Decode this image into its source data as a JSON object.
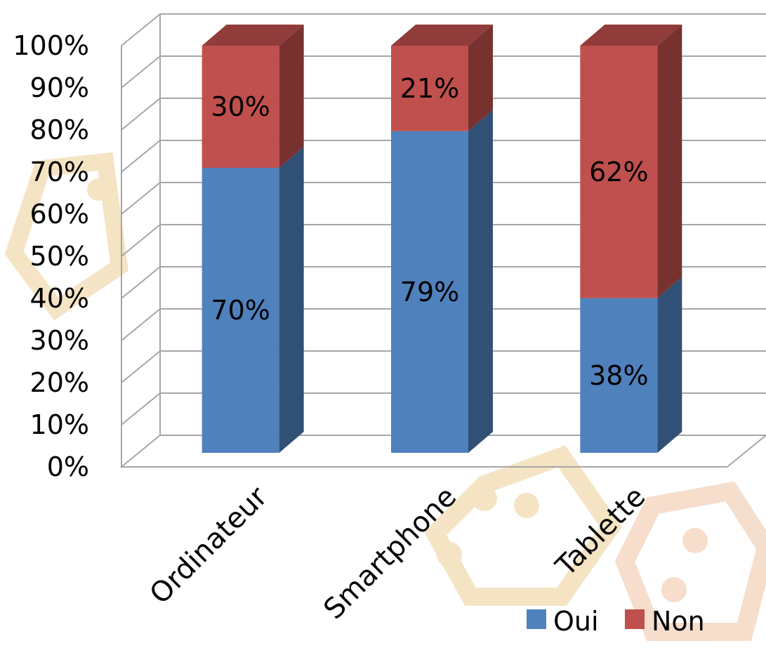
{
  "chart_data": {
    "type": "bar",
    "stacked": true,
    "three_d": true,
    "categories": [
      "Ordinateur",
      "Smartphone",
      "Tablette"
    ],
    "series": [
      {
        "name": "Oui",
        "values": [
          70,
          79,
          38
        ],
        "labels": [
          "70%",
          "79%",
          "38%"
        ],
        "color": "#4f81bd"
      },
      {
        "name": "Non",
        "values": [
          30,
          21,
          62
        ],
        "labels": [
          "30%",
          "21%",
          "62%"
        ],
        "color": "#c0504d"
      }
    ],
    "y_ticks": [
      "0%",
      "10%",
      "20%",
      "30%",
      "40%",
      "50%",
      "60%",
      "70%",
      "80%",
      "90%",
      "100%"
    ],
    "ylim": [
      0,
      100
    ],
    "grid": true,
    "legend_position": "bottom-right"
  }
}
